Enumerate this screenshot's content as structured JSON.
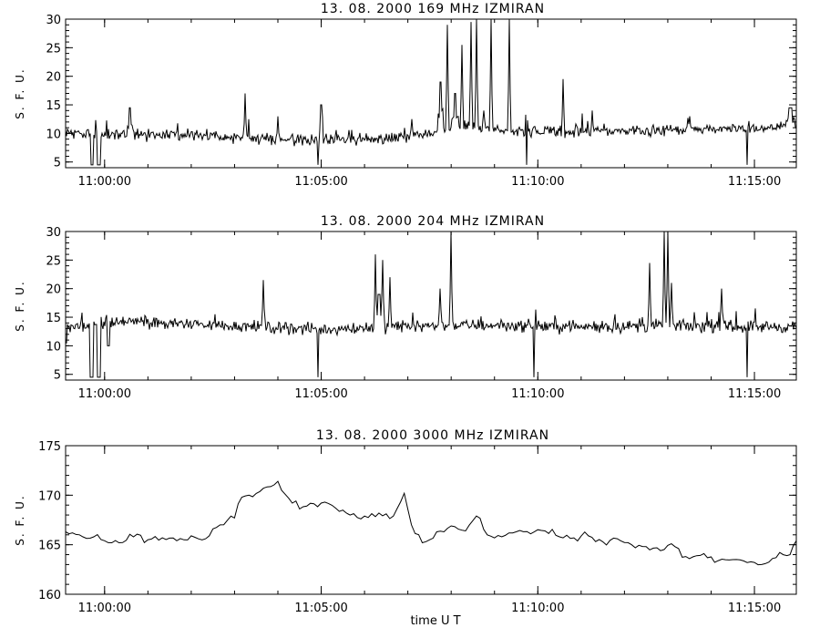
{
  "x_axis_label": "time  U T",
  "chart_data": [
    {
      "type": "line",
      "title": "13.  08.  2000    169  MHz    IZMIRAN",
      "ylabel": "S. F. U.",
      "ylim": [
        4,
        30
      ],
      "yticks": [
        5,
        10,
        15,
        20,
        25,
        30
      ],
      "xlim": [
        "10:59:06",
        "11:15:58"
      ],
      "xticks": [
        "11:00:00",
        "11:05:00",
        "11:10:00",
        "11:15:00"
      ],
      "baseline": [
        [
          "10:59:06",
          10
        ],
        [
          "11:00:00",
          9.8
        ],
        [
          "11:02:00",
          9.7
        ],
        [
          "11:04:00",
          9.0
        ],
        [
          "11:05:00",
          8.8
        ],
        [
          "11:06:00",
          8.9
        ],
        [
          "11:07:00",
          9.5
        ],
        [
          "11:07:40",
          10.5
        ],
        [
          "11:08:30",
          11.5
        ],
        [
          "11:09:00",
          10.8
        ],
        [
          "11:10:00",
          10.2
        ],
        [
          "11:12:00",
          10.4
        ],
        [
          "11:14:00",
          10.8
        ],
        [
          "11:15:58",
          11.2
        ]
      ],
      "noise": 0.8,
      "events": [
        {
          "t": "10:59:43",
          "v": 4.5,
          "w": 3
        },
        {
          "t": "10:59:52",
          "v": 4.5,
          "w": 3
        },
        {
          "t": "11:00:35",
          "v": 14.5,
          "w": 2
        },
        {
          "t": "11:03:15",
          "v": 17,
          "w": 1
        },
        {
          "t": "11:04:00",
          "v": 13,
          "w": 1
        },
        {
          "t": "11:04:55",
          "v": 4.5,
          "w": 1
        },
        {
          "t": "11:05:00",
          "v": 15,
          "w": 1
        },
        {
          "t": "11:07:05",
          "v": 12.5,
          "w": 1
        },
        {
          "t": "11:07:45",
          "v": 19,
          "w": 2
        },
        {
          "t": "11:07:55",
          "v": 29,
          "w": 1
        },
        {
          "t": "11:08:05",
          "v": 17,
          "w": 2
        },
        {
          "t": "11:08:15",
          "v": 25.5,
          "w": 1
        },
        {
          "t": "11:08:28",
          "v": 29.5,
          "w": 1
        },
        {
          "t": "11:08:35",
          "v": 30,
          "w": 1
        },
        {
          "t": "11:08:45",
          "v": 14,
          "w": 1
        },
        {
          "t": "11:08:55",
          "v": 30,
          "w": 1
        },
        {
          "t": "11:09:20",
          "v": 30,
          "w": 1
        },
        {
          "t": "11:09:45",
          "v": 4.5,
          "w": 1
        },
        {
          "t": "11:10:35",
          "v": 19.5,
          "w": 1
        },
        {
          "t": "11:11:15",
          "v": 14,
          "w": 1
        },
        {
          "t": "11:13:30",
          "v": 13,
          "w": 1
        },
        {
          "t": "11:14:50",
          "v": 4.5,
          "w": 1
        },
        {
          "t": "11:15:50",
          "v": 14.5,
          "w": 3
        }
      ]
    },
    {
      "type": "line",
      "title": "13.  08.  2000    204  MHz    IZMIRAN",
      "ylabel": "S. F. U.",
      "ylim": [
        4,
        30
      ],
      "yticks": [
        5,
        10,
        15,
        20,
        25,
        30
      ],
      "xlim": [
        "10:59:06",
        "11:15:58"
      ],
      "xticks": [
        "11:00:00",
        "11:05:00",
        "11:10:00",
        "11:15:00"
      ],
      "baseline": [
        [
          "10:59:06",
          13.2
        ],
        [
          "11:00:30",
          14.2
        ],
        [
          "11:02:00",
          13.8
        ],
        [
          "11:04:00",
          13.2
        ],
        [
          "11:05:00",
          12.8
        ],
        [
          "11:07:00",
          13.5
        ],
        [
          "11:09:00",
          13.6
        ],
        [
          "11:11:00",
          13.3
        ],
        [
          "11:13:00",
          13.5
        ],
        [
          "11:15:58",
          13.3
        ]
      ],
      "noise": 0.9,
      "events": [
        {
          "t": "10:59:06",
          "v": 10.5,
          "w": 2
        },
        {
          "t": "10:59:42",
          "v": 4.5,
          "w": 4
        },
        {
          "t": "10:59:52",
          "v": 4.5,
          "w": 3
        },
        {
          "t": "11:00:05",
          "v": 10,
          "w": 3
        },
        {
          "t": "11:03:40",
          "v": 21.5,
          "w": 1
        },
        {
          "t": "11:04:55",
          "v": 4.5,
          "w": 1
        },
        {
          "t": "11:06:15",
          "v": 26,
          "w": 1
        },
        {
          "t": "11:06:20",
          "v": 19,
          "w": 2
        },
        {
          "t": "11:06:25",
          "v": 25,
          "w": 1
        },
        {
          "t": "11:06:35",
          "v": 22,
          "w": 1
        },
        {
          "t": "11:07:45",
          "v": 20,
          "w": 1
        },
        {
          "t": "11:08:00",
          "v": 30,
          "w": 1
        },
        {
          "t": "11:09:55",
          "v": 4.5,
          "w": 1
        },
        {
          "t": "11:12:35",
          "v": 24.5,
          "w": 1
        },
        {
          "t": "11:12:55",
          "v": 30,
          "w": 1
        },
        {
          "t": "11:13:00",
          "v": 30,
          "w": 1
        },
        {
          "t": "11:13:05",
          "v": 21,
          "w": 1
        },
        {
          "t": "11:14:15",
          "v": 20,
          "w": 1
        },
        {
          "t": "11:14:50",
          "v": 4.5,
          "w": 1
        }
      ]
    },
    {
      "type": "line",
      "title": "13.  08.  2000    3000  MHz    IZMIRAN",
      "ylabel": "S. F. U.",
      "ylim": [
        160,
        175
      ],
      "yticks": [
        160,
        165,
        170,
        175
      ],
      "xlim": [
        "10:59:06",
        "11:15:58"
      ],
      "xticks": [
        "11:00:00",
        "11:05:00",
        "11:10:00",
        "11:15:00"
      ],
      "points": [
        [
          "10:59:06",
          166.3
        ],
        [
          "10:59:30",
          165.8
        ],
        [
          "11:00:00",
          165.4
        ],
        [
          "11:00:20",
          165.2
        ],
        [
          "11:00:40",
          165.8
        ],
        [
          "11:01:00",
          165.5
        ],
        [
          "11:01:20",
          165.7
        ],
        [
          "11:01:40",
          165.4
        ],
        [
          "11:02:00",
          165.9
        ],
        [
          "11:02:20",
          165.6
        ],
        [
          "11:02:40",
          167.0
        ],
        [
          "11:03:00",
          167.7
        ],
        [
          "11:03:10",
          169.8
        ],
        [
          "11:03:20",
          170.0
        ],
        [
          "11:03:40",
          170.7
        ],
        [
          "11:04:00",
          171.4
        ],
        [
          "11:04:10",
          170.1
        ],
        [
          "11:04:20",
          169.2
        ],
        [
          "11:04:40",
          168.9
        ],
        [
          "11:05:00",
          169.2
        ],
        [
          "11:05:20",
          168.7
        ],
        [
          "11:05:40",
          168.0
        ],
        [
          "11:06:00",
          167.9
        ],
        [
          "11:06:20",
          168.2
        ],
        [
          "11:06:40",
          167.9
        ],
        [
          "11:06:55",
          170.2
        ],
        [
          "11:07:05",
          167.0
        ],
        [
          "11:07:20",
          165.2
        ],
        [
          "11:07:40",
          166.3
        ],
        [
          "11:08:00",
          166.9
        ],
        [
          "11:08:20",
          166.4
        ],
        [
          "11:08:35",
          167.9
        ],
        [
          "11:08:50",
          166.0
        ],
        [
          "11:09:10",
          165.8
        ],
        [
          "11:09:30",
          166.3
        ],
        [
          "11:09:50",
          166.1
        ],
        [
          "11:10:10",
          166.4
        ],
        [
          "11:10:30",
          165.8
        ],
        [
          "11:10:50",
          165.7
        ],
        [
          "11:11:10",
          165.9
        ],
        [
          "11:11:30",
          165.3
        ],
        [
          "11:11:50",
          165.6
        ],
        [
          "11:12:10",
          165.0
        ],
        [
          "11:12:30",
          164.8
        ],
        [
          "11:12:50",
          164.4
        ],
        [
          "11:13:10",
          164.8
        ],
        [
          "11:13:30",
          163.6
        ],
        [
          "11:13:50",
          164.1
        ],
        [
          "11:14:10",
          163.4
        ],
        [
          "11:14:30",
          163.5
        ],
        [
          "11:14:50",
          163.2
        ],
        [
          "11:15:10",
          163.0
        ],
        [
          "11:15:30",
          163.7
        ],
        [
          "11:15:45",
          163.9
        ],
        [
          "11:15:58",
          165.4
        ]
      ],
      "noise": 0.35
    }
  ]
}
